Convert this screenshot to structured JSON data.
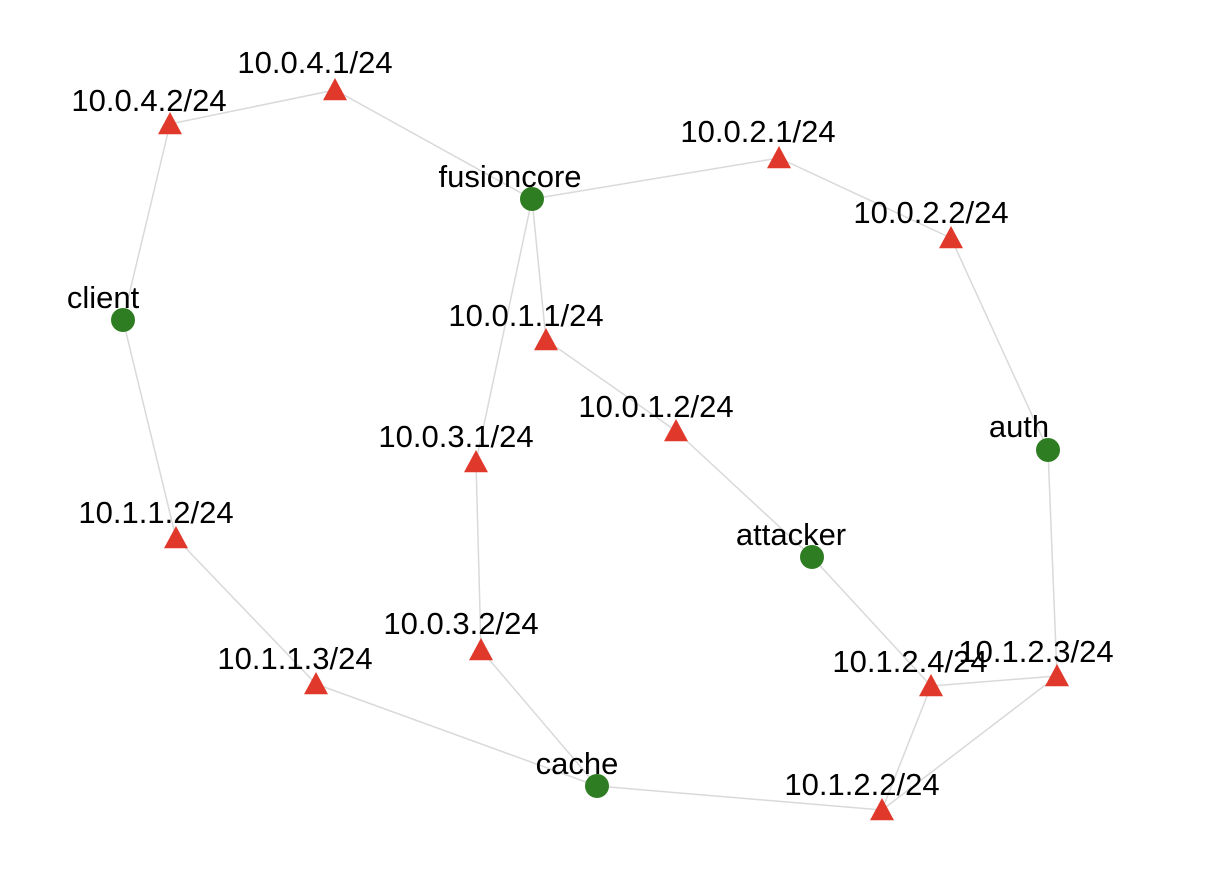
{
  "colors": {
    "host": "#2f7d22",
    "interface": "#e0392b",
    "edge": "#d9d9d9",
    "label": "#000000"
  },
  "node_kinds": {
    "host": "green-circle",
    "interface": "red-triangle"
  },
  "nodes": [
    {
      "id": "fusioncore",
      "label": "fusioncore",
      "kind": "host"
    },
    {
      "id": "client",
      "label": "client",
      "kind": "host"
    },
    {
      "id": "auth",
      "label": "auth",
      "kind": "host"
    },
    {
      "id": "attacker",
      "label": "attacker",
      "kind": "host"
    },
    {
      "id": "cache",
      "label": "cache",
      "kind": "host"
    },
    {
      "id": "if-10-0-4-1",
      "label": "10.0.4.1/24",
      "kind": "interface"
    },
    {
      "id": "if-10-0-4-2",
      "label": "10.0.4.2/24",
      "kind": "interface"
    },
    {
      "id": "if-10-0-2-1",
      "label": "10.0.2.1/24",
      "kind": "interface"
    },
    {
      "id": "if-10-0-2-2",
      "label": "10.0.2.2/24",
      "kind": "interface"
    },
    {
      "id": "if-10-0-1-1",
      "label": "10.0.1.1/24",
      "kind": "interface"
    },
    {
      "id": "if-10-0-1-2",
      "label": "10.0.1.2/24",
      "kind": "interface"
    },
    {
      "id": "if-10-0-3-1",
      "label": "10.0.3.1/24",
      "kind": "interface"
    },
    {
      "id": "if-10-0-3-2",
      "label": "10.0.3.2/24",
      "kind": "interface"
    },
    {
      "id": "if-10-1-1-2",
      "label": "10.1.1.2/24",
      "kind": "interface"
    },
    {
      "id": "if-10-1-1-3",
      "label": "10.1.1.3/24",
      "kind": "interface"
    },
    {
      "id": "if-10-1-2-4",
      "label": "10.1.2.4/24",
      "kind": "interface"
    },
    {
      "id": "if-10-1-2-3",
      "label": "10.1.2.3/24",
      "kind": "interface"
    },
    {
      "id": "if-10-1-2-2",
      "label": "10.1.2.2/24",
      "kind": "interface"
    }
  ],
  "edges": [
    {
      "from": "if-10-0-4-2",
      "to": "if-10-0-4-1"
    },
    {
      "from": "if-10-0-4-1",
      "to": "fusioncore"
    },
    {
      "from": "if-10-0-4-2",
      "to": "client"
    },
    {
      "from": "fusioncore",
      "to": "if-10-0-2-1"
    },
    {
      "from": "if-10-0-2-1",
      "to": "if-10-0-2-2"
    },
    {
      "from": "if-10-0-2-2",
      "to": "auth"
    },
    {
      "from": "fusioncore",
      "to": "if-10-0-1-1"
    },
    {
      "from": "fusioncore",
      "to": "if-10-0-3-1"
    },
    {
      "from": "if-10-0-1-1",
      "to": "if-10-0-1-2"
    },
    {
      "from": "if-10-0-1-2",
      "to": "attacker"
    },
    {
      "from": "if-10-0-3-1",
      "to": "if-10-0-3-2"
    },
    {
      "from": "if-10-0-3-2",
      "to": "cache"
    },
    {
      "from": "client",
      "to": "if-10-1-1-2"
    },
    {
      "from": "if-10-1-1-2",
      "to": "if-10-1-1-3"
    },
    {
      "from": "if-10-1-1-3",
      "to": "cache"
    },
    {
      "from": "cache",
      "to": "if-10-1-2-2"
    },
    {
      "from": "attacker",
      "to": "if-10-1-2-4"
    },
    {
      "from": "if-10-1-2-4",
      "to": "if-10-1-2-3"
    },
    {
      "from": "auth",
      "to": "if-10-1-2-3"
    },
    {
      "from": "if-10-1-2-2",
      "to": "if-10-1-2-4"
    },
    {
      "from": "if-10-1-2-2",
      "to": "if-10-1-2-3"
    }
  ]
}
